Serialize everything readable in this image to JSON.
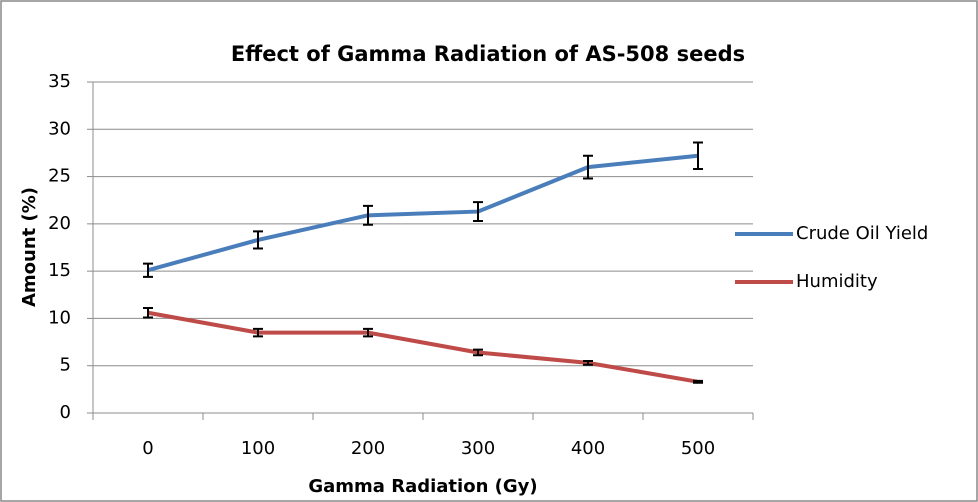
{
  "chart_data": {
    "type": "line",
    "title": "Effect of Gamma Radiation  of AS-508 seeds",
    "x_label": "Gamma Radiation (Gy)",
    "y_label": "Amount (%)",
    "categories": [
      "0",
      "100",
      "200",
      "300",
      "400",
      "500"
    ],
    "series": [
      {
        "name": "Crude Oil Yield",
        "color": "#4a7ebb",
        "values": [
          15.1,
          18.3,
          20.9,
          21.3,
          26.0,
          27.2
        ],
        "errors": [
          0.7,
          0.9,
          1.0,
          1.0,
          1.2,
          1.4
        ]
      },
      {
        "name": "Humidity",
        "color": "#be4b48",
        "values": [
          10.6,
          8.5,
          8.5,
          6.4,
          5.3,
          3.3
        ],
        "errors": [
          0.5,
          0.4,
          0.4,
          0.3,
          0.2,
          0.1
        ]
      }
    ],
    "ylim": [
      0,
      35
    ],
    "yticks": [
      0,
      5,
      10,
      15,
      20,
      25,
      30,
      35
    ],
    "grid": true,
    "legend": "right"
  }
}
